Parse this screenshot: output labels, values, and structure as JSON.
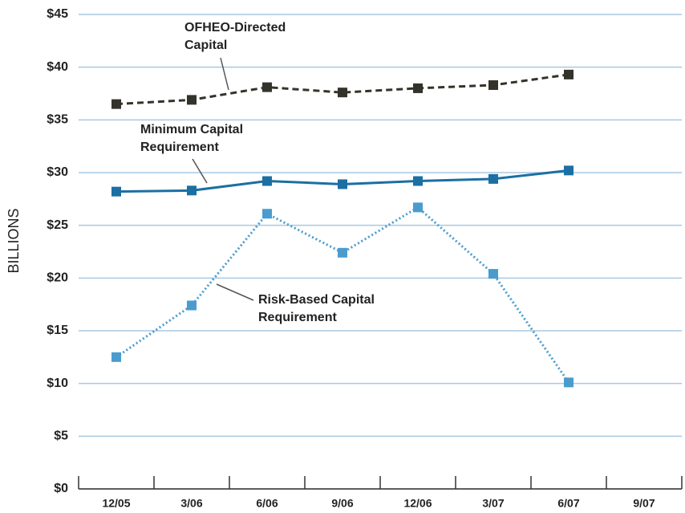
{
  "chart_data": {
    "type": "line",
    "ylabel": "BILLIONS",
    "categories": [
      "12/05",
      "3/06",
      "6/06",
      "9/06",
      "12/06",
      "3/07",
      "6/07",
      "9/07"
    ],
    "series": [
      {
        "name": "OFHEO-Directed Capital",
        "color": "#34332b",
        "line_style": "dashed",
        "marker": "square",
        "values": [
          36.5,
          36.9,
          38.1,
          37.6,
          38.0,
          38.3,
          39.3,
          null
        ]
      },
      {
        "name": "Minimum Capital Requirement",
        "color": "#1b6fa3",
        "line_style": "solid",
        "marker": "square",
        "values": [
          28.2,
          28.3,
          29.2,
          28.9,
          29.2,
          29.4,
          30.2,
          null
        ]
      },
      {
        "name": "Risk-Based Capital Requirement",
        "color": "#4a9ccf",
        "line_style": "dotted",
        "marker": "square",
        "values": [
          12.5,
          17.4,
          26.1,
          22.4,
          26.7,
          20.4,
          10.1,
          null
        ]
      }
    ],
    "annotations": [
      {
        "lines": [
          "OFHEO-Directed",
          "Capital"
        ]
      },
      {
        "lines": [
          "Minimum Capital",
          "Requirement"
        ]
      },
      {
        "lines": [
          "Risk-Based Capital",
          "Requirement"
        ]
      }
    ],
    "ylim": [
      0,
      45
    ],
    "yticks": [
      {
        "value": 0,
        "label": "$0"
      },
      {
        "value": 5,
        "label": "$5"
      },
      {
        "value": 10,
        "label": "$10"
      },
      {
        "value": 15,
        "label": "$15"
      },
      {
        "value": 20,
        "label": "$20"
      },
      {
        "value": 25,
        "label": "$25"
      },
      {
        "value": 30,
        "label": "$30"
      },
      {
        "value": 35,
        "label": "$35"
      },
      {
        "value": 40,
        "label": "$40"
      },
      {
        "value": 45,
        "label": "$45"
      }
    ],
    "grid": true
  }
}
